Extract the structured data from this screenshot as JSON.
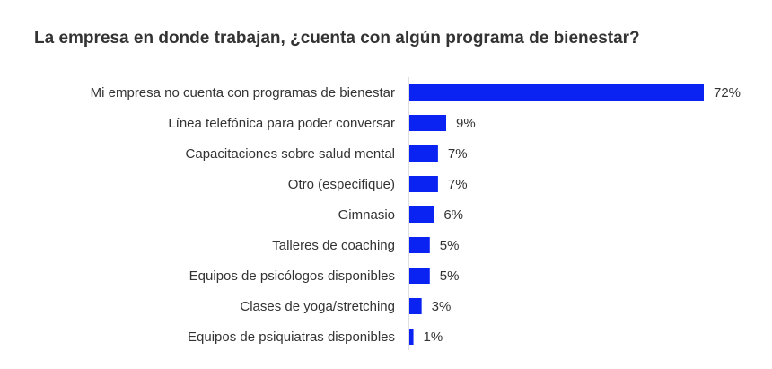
{
  "chart_data": {
    "type": "bar",
    "orientation": "horizontal",
    "title": "La empresa en donde trabajan, ¿cuenta con algún programa de bienestar?",
    "categories": [
      "Mi empresa no cuenta con programas de bienestar",
      "Línea telefónica para poder conversar",
      "Capacitaciones sobre salud mental",
      "Otro (especifique)",
      "Gimnasio",
      "Talleres de coaching",
      "Equipos de psicólogos disponibles",
      "Clases de yoga/stretching",
      "Equipos de psiquiatras disponibles"
    ],
    "values": [
      72,
      9,
      7,
      7,
      6,
      5,
      5,
      3,
      1
    ],
    "value_labels": [
      "72%",
      "9%",
      "7%",
      "7%",
      "6%",
      "5%",
      "5%",
      "3%",
      "1%"
    ],
    "xlabel": "",
    "ylabel": "",
    "xlim": [
      0,
      72
    ],
    "grid": false,
    "legend": "none",
    "bar_color": "#0A22F2",
    "axis_color": "#BFBFBF"
  }
}
